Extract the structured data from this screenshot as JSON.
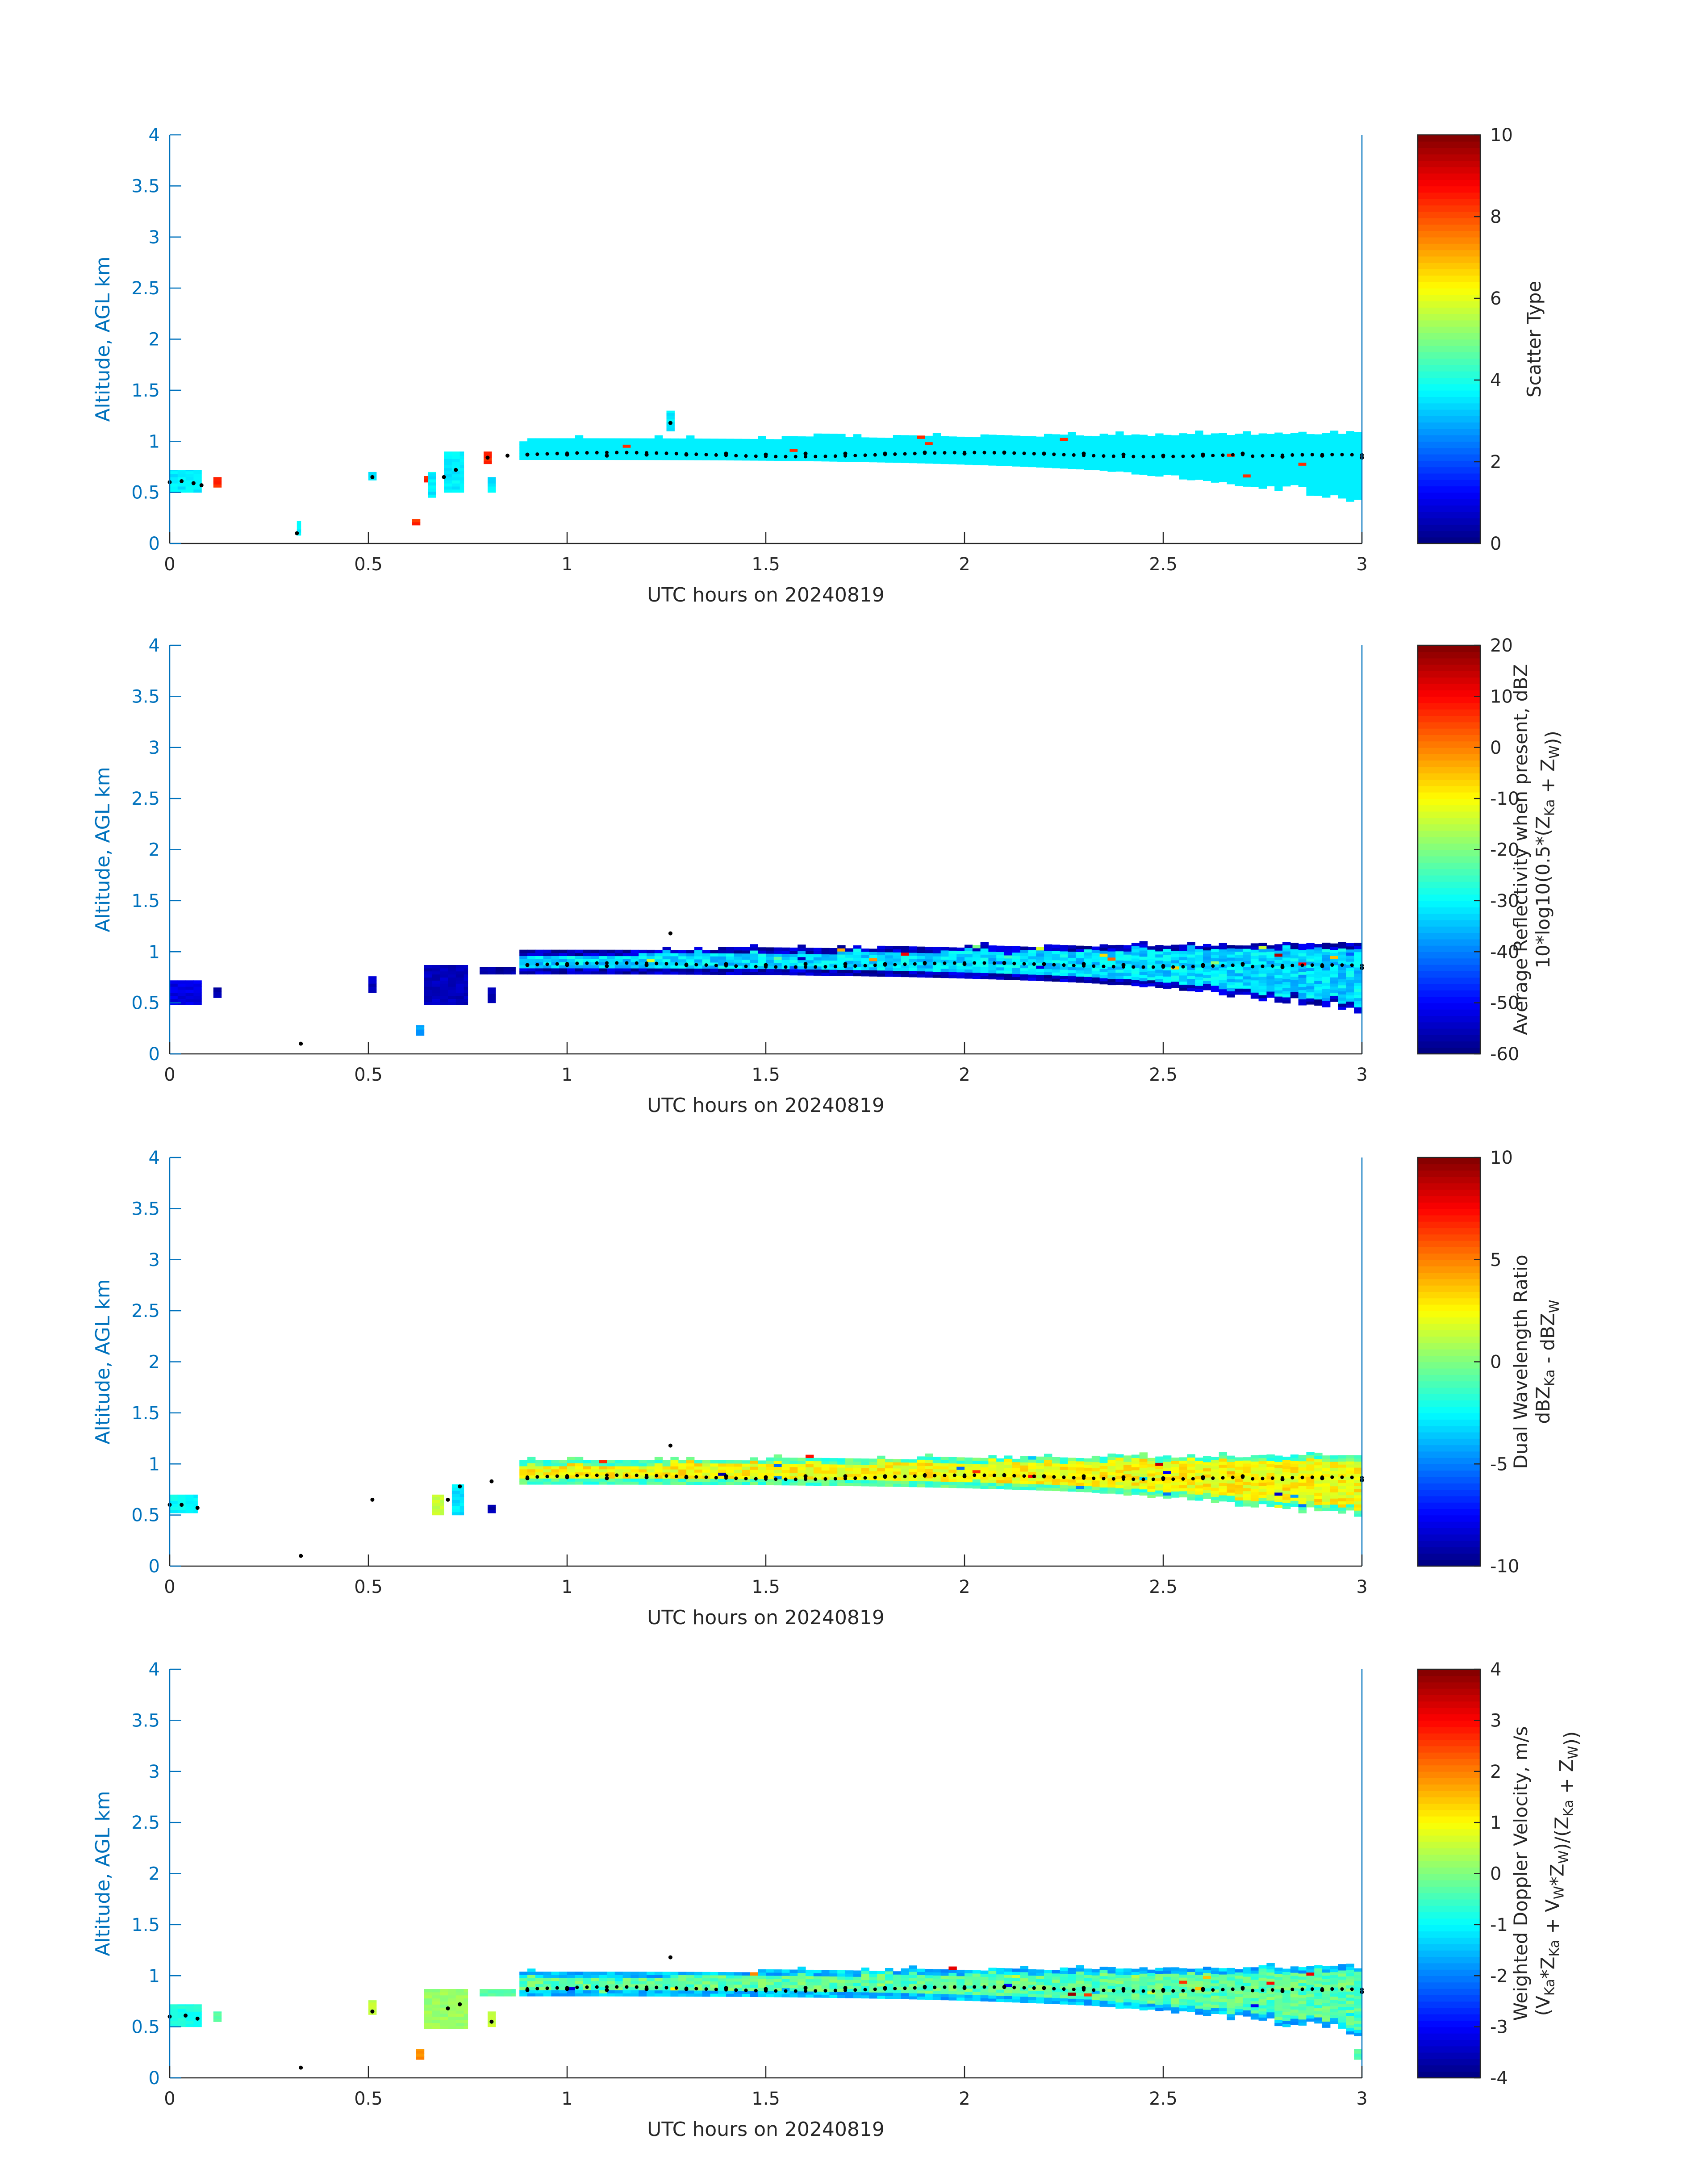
{
  "figure": {
    "colors": {
      "axis_blue": "#0072BD",
      "text_dark": "#262626",
      "marker": "#000000"
    },
    "colormap": "jet"
  },
  "chart_data": [
    {
      "type": "heatmap",
      "panel_id": "scatter-type",
      "xlabel": "UTC hours on 20240819",
      "ylabel": "Altitude, AGL km",
      "xlim": [
        0,
        3
      ],
      "ylim": [
        0,
        4
      ],
      "x_ticks": [
        "0",
        "0.5",
        "1",
        "1.5",
        "2",
        "2.5",
        "3"
      ],
      "y_ticks": [
        "0",
        "0.5",
        "1",
        "1.5",
        "2",
        "2.5",
        "3",
        "3.5",
        "4"
      ],
      "colorbar": {
        "label_lines": [
          "Scatter Type"
        ],
        "clim": [
          0,
          10
        ],
        "ticks": [
          "0",
          "2",
          "4",
          "6",
          "8",
          "10"
        ]
      },
      "field": {
        "layer_time": [
          0.88,
          3.0
        ],
        "layer_base": [
          0.82,
          0.5
        ],
        "layer_top": [
          1.0,
          1.07
        ],
        "dominant_value": 3.6,
        "outlier_value": 8.3,
        "early_patches": [
          {
            "t": [
              0.0,
              0.08
            ],
            "z": [
              0.5,
              0.72
            ],
            "v": 3.6
          },
          {
            "t": [
              0.11,
              0.13
            ],
            "z": [
              0.55,
              0.65
            ],
            "v": 8.3
          },
          {
            "t": [
              0.32,
              0.33
            ],
            "z": [
              0.08,
              0.22
            ],
            "v": 3.6
          },
          {
            "t": [
              0.5,
              0.52
            ],
            "z": [
              0.62,
              0.7
            ],
            "v": 3.6
          },
          {
            "t": [
              0.61,
              0.63
            ],
            "z": [
              0.18,
              0.24
            ],
            "v": 8.3
          },
          {
            "t": [
              0.64,
              0.66
            ],
            "z": [
              0.6,
              0.66
            ],
            "v": 8.3
          },
          {
            "t": [
              0.65,
              0.67
            ],
            "z": [
              0.45,
              0.7
            ],
            "v": 3.6
          },
          {
            "t": [
              0.69,
              0.74
            ],
            "z": [
              0.5,
              0.9
            ],
            "v": 3.6
          },
          {
            "t": [
              0.79,
              0.81
            ],
            "z": [
              0.78,
              0.9
            ],
            "v": 8.3
          },
          {
            "t": [
              0.8,
              0.82
            ],
            "z": [
              0.5,
              0.65
            ],
            "v": 3.6
          },
          {
            "t": [
              1.25,
              1.27
            ],
            "z": [
              1.1,
              1.3
            ],
            "v": 3.6
          }
        ]
      },
      "cloud_base_markers": {
        "t": [
          0.0,
          0.03,
          0.06,
          0.08,
          0.32,
          0.51,
          0.69,
          0.72,
          0.8,
          0.85,
          0.9,
          1.0,
          1.1,
          1.2,
          1.26,
          1.3,
          1.4,
          1.5,
          1.6,
          1.7,
          1.8,
          1.9,
          2.0,
          2.1,
          2.2,
          2.3,
          2.4,
          2.5,
          2.6,
          2.7,
          2.8,
          2.9,
          3.0
        ],
        "z": [
          0.6,
          0.61,
          0.59,
          0.57,
          0.1,
          0.65,
          0.65,
          0.72,
          0.84,
          0.86,
          0.87,
          0.87,
          0.86,
          0.87,
          1.18,
          0.87,
          0.88,
          0.87,
          0.88,
          0.88,
          0.88,
          0.89,
          0.88,
          0.89,
          0.88,
          0.88,
          0.87,
          0.86,
          0.87,
          0.88,
          0.85,
          0.86,
          0.84
        ]
      }
    },
    {
      "type": "heatmap",
      "panel_id": "reflectivity",
      "xlabel": "UTC hours on 20240819",
      "ylabel": "Altitude, AGL km",
      "xlim": [
        0,
        3
      ],
      "ylim": [
        0,
        4
      ],
      "x_ticks": [
        "0",
        "0.5",
        "1",
        "1.5",
        "2",
        "2.5",
        "3"
      ],
      "y_ticks": [
        "0",
        "0.5",
        "1",
        "1.5",
        "2",
        "2.5",
        "3",
        "3.5",
        "4"
      ],
      "colorbar": {
        "label_lines": [
          "Average Reflectivity when present, dBZ",
          "10*log10(0.5*(Z_Ka + Z_W))"
        ],
        "clim": [
          -60,
          20
        ],
        "ticks": [
          "-60",
          "-50",
          "-40",
          "-30",
          "-20",
          "-10",
          "0",
          "10",
          "20"
        ]
      },
      "field": {
        "layer_time": [
          0.88,
          3.0
        ],
        "layer_base": [
          0.78,
          0.5
        ],
        "layer_top": [
          1.0,
          1.07
        ],
        "core_value": -33,
        "edge_value": -55,
        "early_patches": [
          {
            "t": [
              0.0,
              0.08
            ],
            "z": [
              0.48,
              0.72
            ],
            "v": -52
          },
          {
            "t": [
              0.11,
              0.13
            ],
            "z": [
              0.55,
              0.65
            ],
            "v": -56
          },
          {
            "t": [
              0.5,
              0.52
            ],
            "z": [
              0.6,
              0.76
            ],
            "v": -55
          },
          {
            "t": [
              0.62,
              0.64
            ],
            "z": [
              0.18,
              0.28
            ],
            "v": -38
          },
          {
            "t": [
              0.64,
              0.75
            ],
            "z": [
              0.48,
              0.87
            ],
            "v": -55
          },
          {
            "t": [
              0.8,
              0.82
            ],
            "z": [
              0.5,
              0.65
            ],
            "v": -56
          },
          {
            "t": [
              0.78,
              0.87
            ],
            "z": [
              0.78,
              0.85
            ],
            "v": -57
          }
        ]
      },
      "cloud_base_markers": {
        "t": [
          0.33,
          1.26,
          0.9,
          1.0,
          1.1,
          1.2,
          1.3,
          1.4,
          1.5,
          1.6,
          1.7,
          1.8,
          1.9,
          2.0,
          2.1,
          2.2,
          2.3,
          2.4,
          2.5,
          2.6,
          2.7,
          2.8,
          2.9,
          3.0
        ],
        "z": [
          0.1,
          1.18,
          0.87,
          0.87,
          0.86,
          0.87,
          0.87,
          0.88,
          0.87,
          0.88,
          0.88,
          0.88,
          0.89,
          0.88,
          0.89,
          0.88,
          0.88,
          0.87,
          0.86,
          0.87,
          0.88,
          0.85,
          0.86,
          0.84
        ]
      }
    },
    {
      "type": "heatmap",
      "panel_id": "dual-wavelength-ratio",
      "xlabel": "UTC hours on 20240819",
      "ylabel": "Altitude, AGL km",
      "xlim": [
        0,
        3
      ],
      "ylim": [
        0,
        4
      ],
      "x_ticks": [
        "0",
        "0.5",
        "1",
        "1.5",
        "2",
        "2.5",
        "3"
      ],
      "y_ticks": [
        "0",
        "0.5",
        "1",
        "1.5",
        "2",
        "2.5",
        "3",
        "3.5",
        "4"
      ],
      "colorbar": {
        "label_lines": [
          "Dual Wavelength Ratio",
          "dBZ_Ka - dBZ_W"
        ],
        "clim": [
          -10,
          10
        ],
        "ticks": [
          "-10",
          "-5",
          "0",
          "5",
          "10"
        ]
      },
      "field": {
        "layer_time": [
          0.88,
          3.0
        ],
        "layer_base": [
          0.8,
          0.55
        ],
        "layer_top": [
          1.02,
          1.07
        ],
        "core_value": 2.5,
        "edge_value": -1,
        "early_patches": [
          {
            "t": [
              0.0,
              0.07
            ],
            "z": [
              0.52,
              0.7
            ],
            "v": -2.5
          },
          {
            "t": [
              0.66,
              0.69
            ],
            "z": [
              0.5,
              0.7
            ],
            "v": 1.5
          },
          {
            "t": [
              0.71,
              0.74
            ],
            "z": [
              0.5,
              0.8
            ],
            "v": -3
          },
          {
            "t": [
              0.8,
              0.82
            ],
            "z": [
              0.52,
              0.6
            ],
            "v": -9
          }
        ]
      },
      "cloud_base_markers": {
        "t": [
          0.0,
          0.03,
          0.07,
          0.33,
          0.51,
          0.7,
          0.73,
          0.81,
          1.26,
          0.9,
          1.0,
          1.1,
          1.2,
          1.3,
          1.4,
          1.5,
          1.6,
          1.7,
          1.8,
          1.9,
          2.0,
          2.1,
          2.2,
          2.3,
          2.4,
          2.5,
          2.6,
          2.7,
          2.8,
          2.9,
          3.0
        ],
        "z": [
          0.6,
          0.6,
          0.57,
          0.1,
          0.65,
          0.65,
          0.78,
          0.83,
          1.18,
          0.86,
          0.87,
          0.86,
          0.87,
          0.87,
          0.88,
          0.87,
          0.88,
          0.88,
          0.88,
          0.89,
          0.88,
          0.89,
          0.88,
          0.88,
          0.87,
          0.86,
          0.87,
          0.88,
          0.85,
          0.86,
          0.84
        ]
      }
    },
    {
      "type": "heatmap",
      "panel_id": "doppler-velocity",
      "xlabel": "UTC hours on 20240819",
      "ylabel": "Altitude, AGL km",
      "xlim": [
        0,
        3
      ],
      "ylim": [
        0,
        4
      ],
      "x_ticks": [
        "0",
        "0.5",
        "1",
        "1.5",
        "2",
        "2.5",
        "3"
      ],
      "y_ticks": [
        "0",
        "0.5",
        "1",
        "1.5",
        "2",
        "2.5",
        "3",
        "3.5",
        "4"
      ],
      "colorbar": {
        "label_lines": [
          "Weighted Doppler Velocity, m/s",
          "(V_Ka*Z_Ka + V_W*Z_W)/(Z_Ka + Z_W))"
        ],
        "clim": [
          -4,
          4
        ],
        "ticks": [
          "-4",
          "-3",
          "-2",
          "-1",
          "0",
          "1",
          "2",
          "3",
          "4"
        ]
      },
      "field": {
        "layer_time": [
          0.88,
          3.0
        ],
        "layer_base": [
          0.8,
          0.5
        ],
        "layer_top": [
          1.02,
          1.07
        ],
        "core_value": -0.3,
        "edge_value": -1.5,
        "early_patches": [
          {
            "t": [
              0.0,
              0.08
            ],
            "z": [
              0.5,
              0.72
            ],
            "v": -0.8
          },
          {
            "t": [
              0.11,
              0.13
            ],
            "z": [
              0.55,
              0.65
            ],
            "v": -0.3
          },
          {
            "t": [
              0.5,
              0.52
            ],
            "z": [
              0.62,
              0.76
            ],
            "v": 0.5
          },
          {
            "t": [
              0.62,
              0.64
            ],
            "z": [
              0.18,
              0.28
            ],
            "v": 1.8
          },
          {
            "t": [
              0.64,
              0.75
            ],
            "z": [
              0.48,
              0.87
            ],
            "v": 0.2
          },
          {
            "t": [
              0.8,
              0.82
            ],
            "z": [
              0.5,
              0.65
            ],
            "v": 0.6
          },
          {
            "t": [
              0.78,
              0.87
            ],
            "z": [
              0.8,
              0.87
            ],
            "v": -0.3
          },
          {
            "t": [
              2.98,
              3.0
            ],
            "z": [
              0.18,
              0.28
            ],
            "v": -0.3
          }
        ]
      },
      "cloud_base_markers": {
        "t": [
          0.0,
          0.04,
          0.07,
          0.33,
          0.51,
          0.7,
          0.73,
          0.81,
          1.26,
          0.9,
          1.0,
          1.1,
          1.2,
          1.3,
          1.4,
          1.5,
          1.6,
          1.7,
          1.8,
          1.9,
          2.0,
          2.1,
          2.2,
          2.3,
          2.4,
          2.5,
          2.6,
          2.7,
          2.8,
          2.9,
          3.0
        ],
        "z": [
          0.6,
          0.61,
          0.58,
          0.1,
          0.65,
          0.68,
          0.72,
          0.55,
          1.18,
          0.86,
          0.87,
          0.86,
          0.87,
          0.87,
          0.88,
          0.87,
          0.88,
          0.88,
          0.88,
          0.89,
          0.88,
          0.89,
          0.88,
          0.88,
          0.87,
          0.86,
          0.87,
          0.88,
          0.85,
          0.86,
          0.84
        ]
      }
    }
  ]
}
